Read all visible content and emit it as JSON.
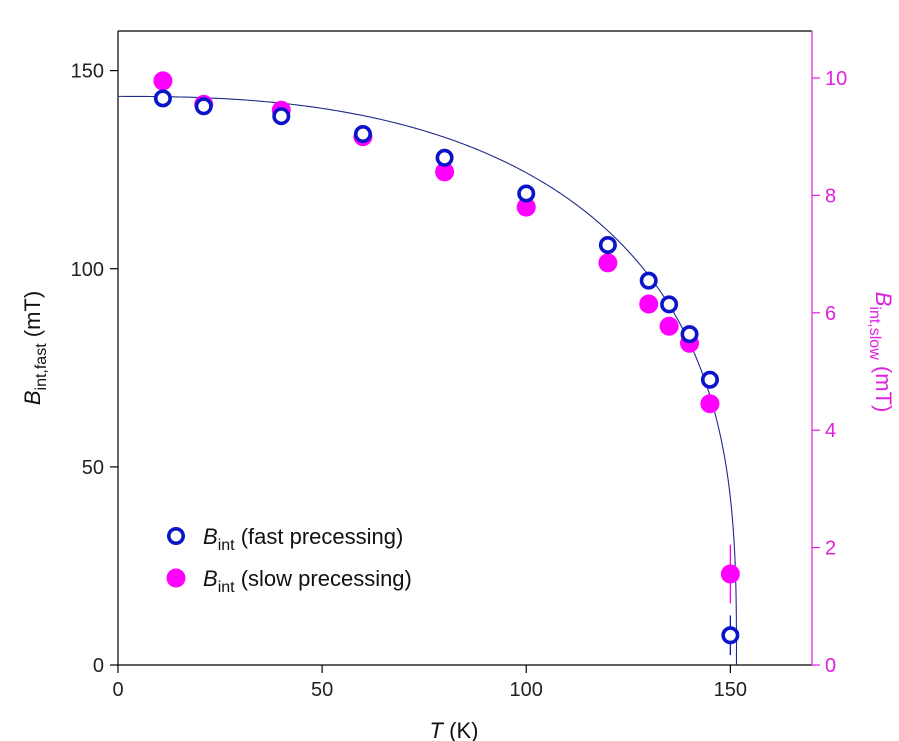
{
  "chart_data": {
    "type": "scatter",
    "title": "",
    "x_axis": {
      "label_italic": "T",
      "label_rest": " (K)",
      "range": [
        0,
        170
      ],
      "ticks": [
        0,
        50,
        100,
        150
      ],
      "tick_labels": [
        "0",
        "50",
        "100",
        "150"
      ]
    },
    "y_left_axis": {
      "label_main": "B",
      "label_sub": "int,fast",
      "label_unit": " (mT)",
      "range": [
        0,
        160
      ],
      "ticks": [
        0,
        50,
        100,
        150
      ],
      "tick_labels": [
        "0",
        "50",
        "100",
        "150"
      ]
    },
    "y_right_axis": {
      "label_main": "B",
      "label_sub": "int,slow",
      "label_unit": " (mT)",
      "range": [
        0,
        10.8
      ],
      "ticks": [
        0,
        2,
        4,
        6,
        8,
        10
      ],
      "tick_labels": [
        "0",
        "2",
        "4",
        "6",
        "8",
        "10"
      ],
      "color": "#e020e0"
    },
    "series": [
      {
        "name_main": "B",
        "name_sub": "int",
        "name_rest": " (fast precessing)",
        "axis": "left",
        "marker": "open-circle",
        "color": "#0a14c8",
        "x": [
          11,
          21,
          40,
          60,
          80,
          100,
          120,
          130,
          135,
          140,
          145,
          150
        ],
        "y": [
          143,
          141,
          138.5,
          134,
          128,
          119,
          106,
          97,
          91,
          83.5,
          72,
          7.5
        ],
        "err": [
          0,
          0,
          0,
          0,
          0,
          0,
          0,
          0,
          0,
          0,
          0,
          5
        ]
      },
      {
        "name_main": "B",
        "name_sub": "int",
        "name_rest": " (slow precessing)",
        "axis": "right",
        "marker": "filled-circle",
        "color": "#ff00ff",
        "x": [
          11,
          21,
          40,
          60,
          80,
          100,
          120,
          130,
          135,
          140,
          145,
          150
        ],
        "y": [
          9.95,
          9.55,
          9.45,
          9.0,
          8.4,
          7.8,
          6.85,
          6.15,
          5.77,
          5.48,
          4.45,
          1.55
        ],
        "err": [
          0,
          0,
          0,
          0,
          0,
          0,
          0,
          0,
          0,
          0,
          0,
          0.5
        ]
      }
    ],
    "fit_curve": {
      "color": "#1f2a8c",
      "axis": "left",
      "B0": 143.5,
      "Tc": 151.5,
      "exponent_alpha": 2.5,
      "exponent_beta": 0.33
    },
    "legend": {
      "position": "lower-left"
    }
  }
}
